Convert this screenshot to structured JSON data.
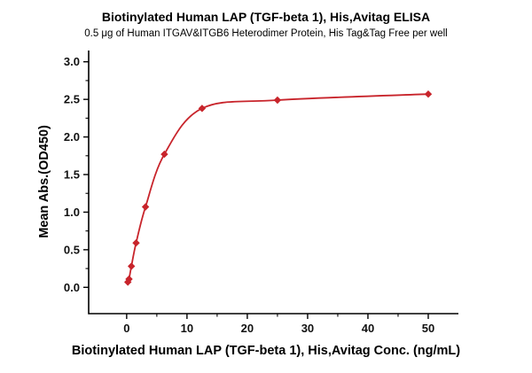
{
  "chart_data": {
    "type": "scatter",
    "title": "Biotinylated Human LAP (TGF-beta 1), His,Avitag ELISA",
    "subtitle": "0.5 μg of Human ITGAV&ITGB6 Heterodimer Protein, His Tag&Tag Free per well",
    "xlabel": "Biotinylated Human LAP (TGF-beta 1), His,Avitag Conc. (ng/mL)",
    "ylabel": "Mean Abs.(OD450)",
    "x": [
      0.195,
      0.39,
      0.78,
      1.56,
      3.125,
      6.25,
      12.5,
      25,
      50
    ],
    "series": [
      {
        "name": "Mean Abs.(OD450)",
        "values": [
          0.07,
          0.11,
          0.28,
          0.59,
          1.07,
          1.77,
          2.38,
          2.49,
          2.57
        ]
      }
    ],
    "marker": "diamond",
    "curve": "smooth 4PL fit through points",
    "colors": {
      "line": "#C8242B",
      "marker": "#C8242B",
      "axis": "#000000",
      "text": "#000000"
    },
    "layout": {
      "xlim": [
        -6.3,
        55
      ],
      "ylim": [
        -0.35,
        3.15
      ],
      "xticks": [
        0,
        10,
        20,
        30,
        40,
        50
      ],
      "xtick_labels": [
        "0",
        "10",
        "20",
        "30",
        "40",
        "50"
      ],
      "yticks": [
        0,
        0.5,
        1,
        1.5,
        2,
        2.5,
        3
      ],
      "ytick_labels": [
        "0.0",
        "0.5",
        "1.0",
        "1.5",
        "2.0",
        "2.5",
        "3.0"
      ],
      "xminor": [
        5,
        15,
        25,
        35,
        45
      ],
      "yminor": [
        0.25,
        0.75,
        1.25,
        1.75,
        2.25,
        2.75
      ],
      "grid": false,
      "legend": "none"
    }
  }
}
